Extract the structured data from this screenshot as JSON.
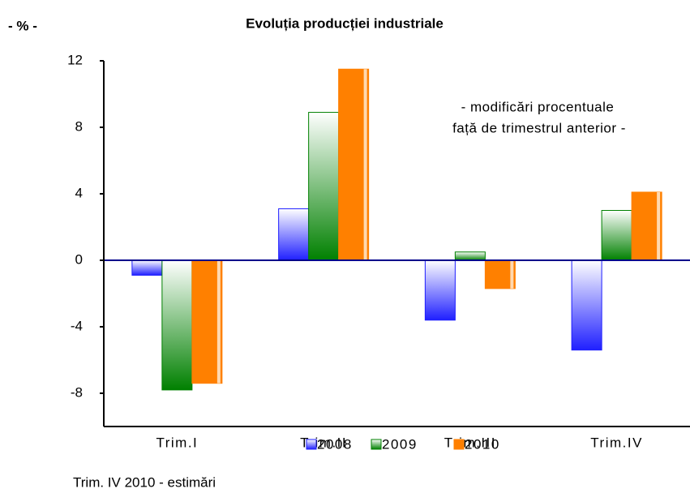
{
  "chart_data": {
    "type": "bar",
    "title": "Evoluția producției industriale",
    "unit_label": "- % -",
    "annotation": [
      "- modificări procentuale",
      "față de trimestrul anterior -"
    ],
    "footnote": "Trim. IV 2010 - estimări",
    "categories": [
      "Trim.I",
      "Trim.II",
      "Trim.III",
      "Trim.IV"
    ],
    "series": [
      {
        "name": "2008",
        "color": "#1f1fff",
        "values": [
          -0.9,
          3.1,
          -3.6,
          -5.4
        ]
      },
      {
        "name": "2009",
        "color": "#008000",
        "values": [
          -7.8,
          8.9,
          0.5,
          3.0
        ]
      },
      {
        "name": "2010",
        "color": "#ff8000",
        "values": [
          -7.4,
          11.5,
          -1.7,
          4.1
        ]
      }
    ],
    "ylim": [
      -10,
      12
    ],
    "yticks": [
      -8,
      -4,
      0,
      4,
      8,
      12
    ],
    "grid": false,
    "legend": "bottom"
  }
}
